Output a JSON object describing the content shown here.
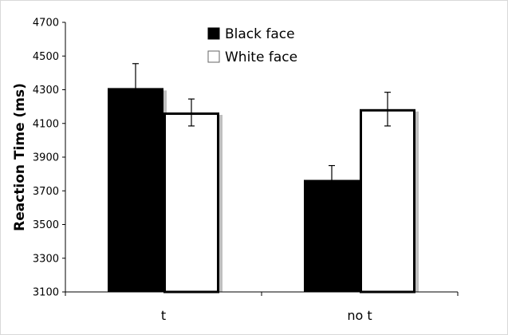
{
  "chart_data": {
    "type": "bar",
    "title": "",
    "xlabel": "",
    "ylabel": "Reaction Time (ms)",
    "categories": [
      "t",
      "no t"
    ],
    "ylim": [
      3100,
      4700
    ],
    "yticks": [
      3100,
      3300,
      3500,
      3700,
      3900,
      4100,
      4300,
      4500,
      4700
    ],
    "grid": false,
    "legend_position": "top-center",
    "series": [
      {
        "name": "Black face",
        "color": "#000000",
        "values": [
          4310,
          3765
        ],
        "error": [
          145,
          85
        ]
      },
      {
        "name": "White face",
        "color": "#ffffff",
        "values": [
          4165,
          4185
        ],
        "error": [
          80,
          100
        ]
      }
    ]
  }
}
